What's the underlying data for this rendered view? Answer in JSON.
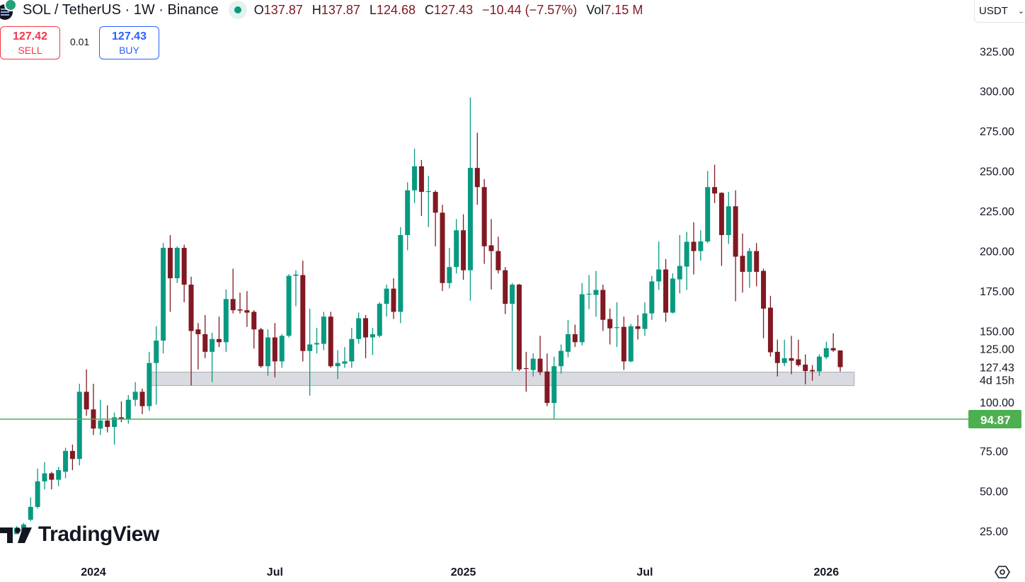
{
  "header": {
    "title": "SOL / TetherUS · 1W · Binance",
    "status_icon": "market-open-dot",
    "ohlc": {
      "o_label": "O",
      "o": "137.87",
      "h_label": "H",
      "h": "137.87",
      "l_label": "L",
      "l": "124.68",
      "c_label": "C",
      "c": "127.43",
      "change": "−10.44 (−7.57%)",
      "vol_label": "Vol",
      "vol": "7.15 M"
    }
  },
  "trade": {
    "sell_price": "127.42",
    "sell_label": "SELL",
    "spread": "0.01",
    "buy_price": "127.43",
    "buy_label": "BUY"
  },
  "currency": {
    "value": "USDT"
  },
  "logo": {
    "text": "TradingView"
  },
  "colors": {
    "up": "#089981",
    "down": "#801922",
    "hline": "#4caf50",
    "zone_fill": "#dadbe1",
    "zone_border": "#b2b5be",
    "ohlc_text": "#801922"
  },
  "chart_data": {
    "type": "candlestick",
    "interval": "1W",
    "ylim": [
      5,
      357
    ],
    "grid": false,
    "y_ticks": [
      "325.00",
      "300.00",
      "275.00",
      "250.00",
      "225.00",
      "200.00",
      "175.00",
      "150.00",
      "125.00",
      "100.00",
      "75.00",
      "50.00",
      "25.00"
    ],
    "x_ticks": [
      {
        "label": "2024",
        "date": "2024-01-01"
      },
      {
        "label": "Jul",
        "date": "2024-07-01"
      },
      {
        "label": "2025",
        "date": "2025-01-06"
      },
      {
        "label": "Jul",
        "date": "2025-07-07"
      },
      {
        "label": "2026",
        "date": "2026-01-05"
      }
    ],
    "last_price": {
      "value": "127.43",
      "countdown": "4d 15h"
    },
    "horizontal_line": {
      "value": 94.87,
      "label": "94.87"
    },
    "zone": {
      "from": "2024-02-26",
      "to": "2026-02-02",
      "low": 115.9,
      "high": 124.3
    },
    "candles": [
      [
        "2023-10-09",
        24,
        25,
        22,
        23
      ],
      [
        "2023-10-16",
        23,
        28,
        23,
        27
      ],
      [
        "2023-10-23",
        25,
        30,
        24,
        29
      ],
      [
        "2023-10-30",
        32,
        46,
        31,
        40
      ],
      [
        "2023-11-06",
        40,
        64,
        39,
        56
      ],
      [
        "2023-11-13",
        56,
        68,
        51,
        61
      ],
      [
        "2023-11-20",
        61,
        62,
        51,
        57
      ],
      [
        "2023-11-27",
        57,
        65,
        53,
        63
      ],
      [
        "2023-12-04",
        62,
        77,
        58,
        75
      ],
      [
        "2023-12-11",
        75,
        79,
        63,
        70
      ],
      [
        "2023-12-18",
        70,
        117,
        66,
        112
      ],
      [
        "2023-12-25",
        112,
        126,
        97,
        101
      ],
      [
        "2024-01-01",
        101,
        117,
        85,
        89
      ],
      [
        "2024-01-08",
        89,
        107,
        85,
        94
      ],
      [
        "2024-01-15",
        94,
        103.5,
        86.6,
        90
      ],
      [
        "2024-01-22",
        90,
        99,
        79,
        96
      ],
      [
        "2024-01-29",
        96,
        106,
        93,
        95
      ],
      [
        "2024-02-05",
        95,
        110,
        92,
        107
      ],
      [
        "2024-02-12",
        107,
        118,
        103,
        112
      ],
      [
        "2024-02-19",
        112,
        114,
        98,
        103
      ],
      [
        "2024-02-26",
        103,
        137,
        100,
        130
      ],
      [
        "2024-03-04",
        130,
        153,
        104,
        144
      ],
      [
        "2024-03-11",
        144,
        205,
        136,
        202
      ],
      [
        "2024-03-18",
        202,
        210,
        162,
        183
      ],
      [
        "2024-03-25",
        183,
        203,
        180,
        202
      ],
      [
        "2024-04-01",
        202,
        204,
        168,
        179
      ],
      [
        "2024-04-08",
        179,
        184,
        116,
        150
      ],
      [
        "2024-04-15",
        151,
        155,
        126,
        148
      ],
      [
        "2024-04-22",
        148,
        160,
        133,
        137
      ],
      [
        "2024-04-29",
        137,
        149,
        118,
        145
      ],
      [
        "2024-05-06",
        145,
        159,
        140,
        143
      ],
      [
        "2024-05-13",
        143,
        176,
        137,
        170
      ],
      [
        "2024-05-20",
        170,
        189,
        161,
        163
      ],
      [
        "2024-05-27",
        163.5,
        174,
        161,
        162.8
      ],
      [
        "2024-06-03",
        163,
        175,
        152.6,
        161.5
      ],
      [
        "2024-06-10",
        162,
        163,
        139,
        151
      ],
      [
        "2024-06-17",
        151,
        152,
        127,
        128
      ],
      [
        "2024-06-24",
        128,
        151,
        122,
        146
      ],
      [
        "2024-07-01",
        146,
        155,
        121,
        131
      ],
      [
        "2024-07-08",
        131,
        148,
        127,
        147
      ],
      [
        "2024-07-15",
        147,
        185.5,
        146,
        184.5
      ],
      [
        "2024-07-22",
        184.5,
        188,
        165.5,
        185.3
      ],
      [
        "2024-07-29",
        185,
        194,
        131,
        137.5
      ],
      [
        "2024-08-05",
        137.5,
        164,
        109.6,
        141.6
      ],
      [
        "2024-08-12",
        141.6,
        152,
        136,
        142.5
      ],
      [
        "2024-08-19",
        142,
        162,
        138,
        159
      ],
      [
        "2024-08-26",
        159,
        162,
        127,
        128
      ],
      [
        "2024-09-02",
        128,
        138,
        120,
        130
      ],
      [
        "2024-09-09",
        129.6,
        140,
        127,
        131
      ],
      [
        "2024-09-16",
        131,
        152,
        127,
        145
      ],
      [
        "2024-09-23",
        145,
        161.5,
        142,
        158
      ],
      [
        "2024-09-30",
        158,
        160,
        133,
        146
      ],
      [
        "2024-10-07",
        146,
        152,
        135,
        148
      ],
      [
        "2024-10-14",
        147,
        168,
        146,
        167
      ],
      [
        "2024-10-21",
        167,
        179,
        159,
        176.5
      ],
      [
        "2024-10-28",
        176.5,
        183,
        157.5,
        162
      ],
      [
        "2024-11-04",
        162,
        215,
        155,
        210
      ],
      [
        "2024-11-11",
        210,
        243,
        200.5,
        238
      ],
      [
        "2024-11-18",
        238,
        264,
        230,
        253
      ],
      [
        "2024-11-25",
        253,
        257,
        222,
        237
      ],
      [
        "2024-12-02",
        237,
        247,
        215,
        237.5
      ],
      [
        "2024-12-09",
        237,
        238,
        203,
        224
      ],
      [
        "2024-12-16",
        224,
        229,
        175,
        180
      ],
      [
        "2024-12-23",
        180,
        202,
        176.6,
        190
      ],
      [
        "2024-12-30",
        190,
        220,
        186,
        213
      ],
      [
        "2025-01-06",
        213,
        223,
        182,
        188
      ],
      [
        "2025-01-13",
        188,
        296,
        169,
        252
      ],
      [
        "2025-01-20",
        252,
        274,
        229,
        240
      ],
      [
        "2025-01-27",
        240,
        245,
        192,
        203
      ],
      [
        "2025-02-03",
        203.6,
        220,
        176,
        200
      ],
      [
        "2025-02-10",
        200,
        209,
        186,
        188
      ],
      [
        "2025-02-17",
        188,
        190,
        160.6,
        167
      ],
      [
        "2025-02-24",
        167,
        180,
        125,
        179
      ],
      [
        "2025-03-03",
        179,
        179.5,
        125,
        126
      ],
      [
        "2025-03-10",
        126.8,
        137,
        112,
        126.3
      ],
      [
        "2025-03-17",
        125.6,
        136,
        121.6,
        132.7
      ],
      [
        "2025-03-24",
        132.7,
        147,
        122.5,
        124.3
      ],
      [
        "2025-03-31",
        124.7,
        136,
        103,
        105
      ],
      [
        "2025-04-07",
        105,
        134,
        95,
        128
      ],
      [
        "2025-04-14",
        128,
        141.6,
        123.4,
        137.6
      ],
      [
        "2025-04-21",
        137,
        157,
        133.6,
        148
      ],
      [
        "2025-04-28",
        148,
        154,
        140,
        143
      ],
      [
        "2025-05-05",
        143,
        180,
        141,
        173
      ],
      [
        "2025-05-12",
        172.8,
        185,
        163.7,
        173.3
      ],
      [
        "2025-05-19",
        172.6,
        187.6,
        159,
        175.7
      ],
      [
        "2025-05-26",
        175.7,
        179,
        150,
        157
      ],
      [
        "2025-06-02",
        157.5,
        164,
        141.6,
        151.7
      ],
      [
        "2025-06-09",
        152,
        168,
        140,
        152.4
      ],
      [
        "2025-06-16",
        152.6,
        159,
        125.6,
        131
      ],
      [
        "2025-06-23",
        131,
        154.4,
        130.5,
        153
      ],
      [
        "2025-06-30",
        153,
        160,
        144.7,
        151.3
      ],
      [
        "2025-07-07",
        151.3,
        168,
        147,
        161
      ],
      [
        "2025-07-14",
        161,
        184.5,
        157,
        181
      ],
      [
        "2025-07-21",
        181,
        206,
        175.7,
        188.5
      ],
      [
        "2025-07-28",
        188.5,
        195,
        155.7,
        161.5
      ],
      [
        "2025-08-04",
        161.5,
        186,
        161,
        182.8
      ],
      [
        "2025-08-11",
        182.3,
        210,
        173.5,
        190.7
      ],
      [
        "2025-08-18",
        190.3,
        212,
        175.7,
        205.8
      ],
      [
        "2025-08-25",
        205.8,
        218,
        185.4,
        200
      ],
      [
        "2025-09-01",
        200,
        213,
        194,
        206
      ],
      [
        "2025-09-08",
        206,
        250,
        205,
        240
      ],
      [
        "2025-09-15",
        240,
        254,
        230,
        236
      ],
      [
        "2025-09-22",
        236.4,
        236.8,
        190.7,
        210
      ],
      [
        "2025-09-29",
        210,
        237,
        204.5,
        228
      ],
      [
        "2025-10-06",
        228,
        238,
        168.6,
        196.5
      ],
      [
        "2025-10-13",
        197,
        211,
        174,
        187
      ],
      [
        "2025-10-20",
        187,
        202,
        177,
        200
      ],
      [
        "2025-10-27",
        200,
        205,
        178,
        187
      ],
      [
        "2025-11-03",
        187.6,
        189,
        145.5,
        164
      ],
      [
        "2025-11-10",
        164.6,
        172,
        134,
        136.7
      ],
      [
        "2025-11-17",
        137,
        144.6,
        121.6,
        130
      ],
      [
        "2025-11-24",
        130,
        144.6,
        128,
        133
      ],
      [
        "2025-12-01",
        133,
        147,
        123,
        131.4
      ],
      [
        "2025-12-08",
        132.3,
        144.6,
        127.8,
        128.7
      ],
      [
        "2025-12-15",
        129,
        135.4,
        116.7,
        125
      ],
      [
        "2025-12-22",
        125.6,
        128.7,
        119,
        124.8
      ],
      [
        "2025-12-29",
        124.8,
        135.4,
        122,
        134
      ],
      [
        "2026-01-05",
        133.6,
        143.3,
        132.3,
        139.3
      ],
      [
        "2026-01-12",
        139.3,
        148.6,
        137,
        137.87
      ],
      [
        "2026-01-19",
        137.87,
        137.87,
        124.68,
        127.43
      ]
    ]
  }
}
